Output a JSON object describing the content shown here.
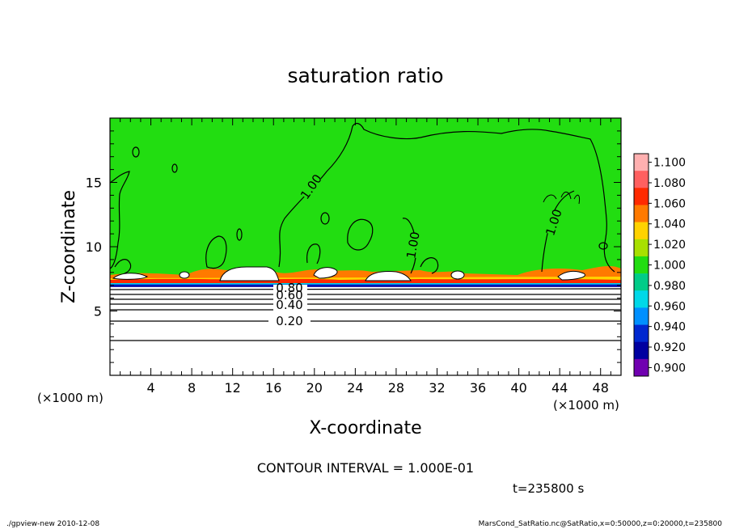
{
  "chart_data": {
    "type": "heatmap",
    "title": "saturation ratio",
    "xlabel": "X-coordinate",
    "ylabel": "Z-coordinate",
    "x_unit": "(×1000 m)",
    "z_unit": "(×1000 m)",
    "xlim": [
      0,
      50
    ],
    "ylim": [
      0,
      20
    ],
    "x_ticks": [
      "4",
      "8",
      "12",
      "16",
      "20",
      "24",
      "28",
      "32",
      "36",
      "40",
      "44",
      "48"
    ],
    "y_ticks": [
      "5",
      "10",
      "15"
    ],
    "colorbar": {
      "levels": [
        "1.100",
        "1.080",
        "1.060",
        "1.040",
        "1.020",
        "1.000",
        "0.980",
        "0.960",
        "0.940",
        "0.920",
        "0.900"
      ],
      "colors": [
        "#ffb0b0",
        "#ff6060",
        "#ff2a00",
        "#ff7a00",
        "#ffd200",
        "#a8e000",
        "#22dd11",
        "#00cc88",
        "#00d8e8",
        "#0090ff",
        "#0028d0",
        "#0000a0",
        "#7000b0"
      ]
    },
    "contour_labels": [
      "1.00",
      "1.00",
      "1.00",
      "0.80",
      "0.60",
      "0.40",
      "0.20"
    ],
    "contour_interval_text": "CONTOUR INTERVAL = 1.000E-01",
    "time_text": "t=235800 s",
    "field_color": "#22dd11"
  },
  "footer": {
    "left": "./gpview-new  2010-12-08",
    "right": "MarsCond_SatRatio.nc@SatRatio,x=0:50000,z=0:20000,t=235800"
  }
}
